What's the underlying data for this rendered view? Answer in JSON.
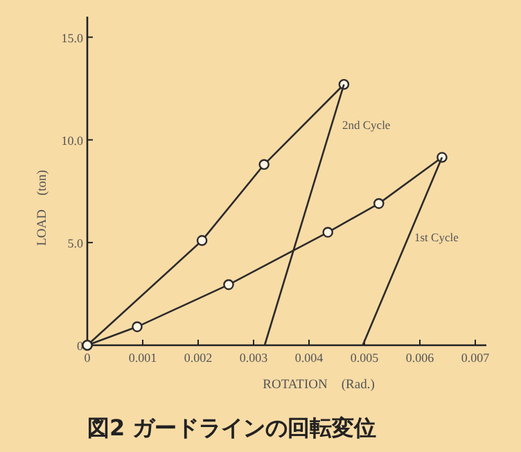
{
  "chart_data": {
    "type": "line",
    "title": "図2 ガードラインの回転変位",
    "xlabel": "ROTATION　(Rad.)",
    "ylabel": "LOAD　(ton)",
    "xlim": [
      0,
      0.0072
    ],
    "ylim": [
      0,
      16
    ],
    "xticks": [
      0,
      0.001,
      0.002,
      0.003,
      0.004,
      0.005,
      0.006,
      0.007
    ],
    "yticks": [
      0,
      {
        "value": 5,
        "label": "5.0"
      },
      {
        "value": 10,
        "label": "10.0"
      },
      {
        "value": 15,
        "label": "15.0"
      }
    ],
    "grid": false,
    "line_style": "solid",
    "series": [
      {
        "color": "#2b2b2b",
        "marker": "circle",
        "x": [
          0,
          0.00207,
          0.00319,
          0.00463
        ],
        "values": [
          0,
          5.1,
          8.8,
          12.7
        ]
      },
      {
        "color": "#2b2b2b",
        "marker": "none",
        "x": [
          0.00463,
          0.0032
        ],
        "values": [
          12.7,
          0
        ]
      },
      {
        "color": "#2b2b2b",
        "marker": "circle",
        "x": [
          0,
          0.0009,
          0.00255,
          0.00434,
          0.00526,
          0.0064
        ],
        "values": [
          0,
          0.9,
          2.95,
          5.5,
          6.9,
          9.15
        ]
      },
      {
        "color": "#2b2b2b",
        "marker": "none",
        "x": [
          0.0064,
          0.00497
        ],
        "values": [
          9.15,
          0
        ]
      }
    ],
    "annotations": [
      "2nd Cycle",
      "1st Cycle"
    ]
  }
}
